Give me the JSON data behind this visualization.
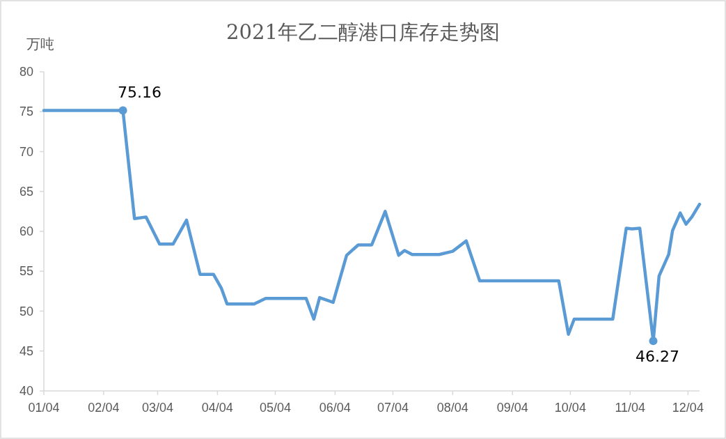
{
  "chart_data": {
    "type": "line",
    "title": "2021年乙二醇港口库存走势图",
    "ylabel": "万吨",
    "x": [
      "2021-01-04",
      "2021-02-14",
      "2021-02-20",
      "2021-02-26",
      "2021-03-05",
      "2021-03-12",
      "2021-03-19",
      "2021-03-26",
      "2021-04-02",
      "2021-04-06",
      "2021-04-09",
      "2021-04-23",
      "2021-04-29",
      "2021-05-20",
      "2021-05-24",
      "2021-05-27",
      "2021-06-03",
      "2021-06-10",
      "2021-06-16",
      "2021-06-23",
      "2021-06-30",
      "2021-07-07",
      "2021-07-10",
      "2021-07-14",
      "2021-07-28",
      "2021-08-04",
      "2021-08-11",
      "2021-08-18",
      "2021-09-28",
      "2021-10-03",
      "2021-10-06",
      "2021-10-26",
      "2021-11-02",
      "2021-11-05",
      "2021-11-09",
      "2021-11-16",
      "2021-11-19",
      "2021-11-24",
      "2021-11-26",
      "2021-11-30",
      "2021-12-03",
      "2021-12-06",
      "2021-12-10"
    ],
    "series": [
      {
        "color": "#5b9bd5",
        "values": [
          75.16,
          75.16,
          61.6,
          61.8,
          58.4,
          58.4,
          61.4,
          54.6,
          54.6,
          52.9,
          50.9,
          50.9,
          51.6,
          51.6,
          49.0,
          51.7,
          51.1,
          57.0,
          58.3,
          58.3,
          62.5,
          57.0,
          57.6,
          57.1,
          57.1,
          57.5,
          58.8,
          53.8,
          53.8,
          47.1,
          49.0,
          49.0,
          60.4,
          60.3,
          60.4,
          46.27,
          54.4,
          57.1,
          60.1,
          62.3,
          60.9,
          61.8,
          63.4
        ]
      }
    ],
    "xlim": [
      "2021-01-04",
      "2021-12-10"
    ],
    "ylim": [
      40,
      80
    ],
    "xticks": [
      {
        "value": "2021-01-04",
        "label": "01/04"
      },
      {
        "value": "2021-02-04",
        "label": "02/04"
      },
      {
        "value": "2021-03-04",
        "label": "03/04"
      },
      {
        "value": "2021-04-04",
        "label": "04/04"
      },
      {
        "value": "2021-05-04",
        "label": "05/04"
      },
      {
        "value": "2021-06-04",
        "label": "06/04"
      },
      {
        "value": "2021-07-04",
        "label": "07/04"
      },
      {
        "value": "2021-08-04",
        "label": "08/04"
      },
      {
        "value": "2021-09-04",
        "label": "09/04"
      },
      {
        "value": "2021-10-04",
        "label": "10/04"
      },
      {
        "value": "2021-11-04",
        "label": "11/04"
      },
      {
        "value": "2021-12-04",
        "label": "12/04"
      }
    ],
    "yticks": [
      40,
      45,
      50,
      55,
      60,
      65,
      70,
      75,
      80
    ],
    "annotations": [
      {
        "text": "75.16",
        "x": "2021-02-14",
        "y": 75.16
      },
      {
        "text": "46.27",
        "x": "2021-11-16",
        "y": 46.27
      }
    ]
  }
}
